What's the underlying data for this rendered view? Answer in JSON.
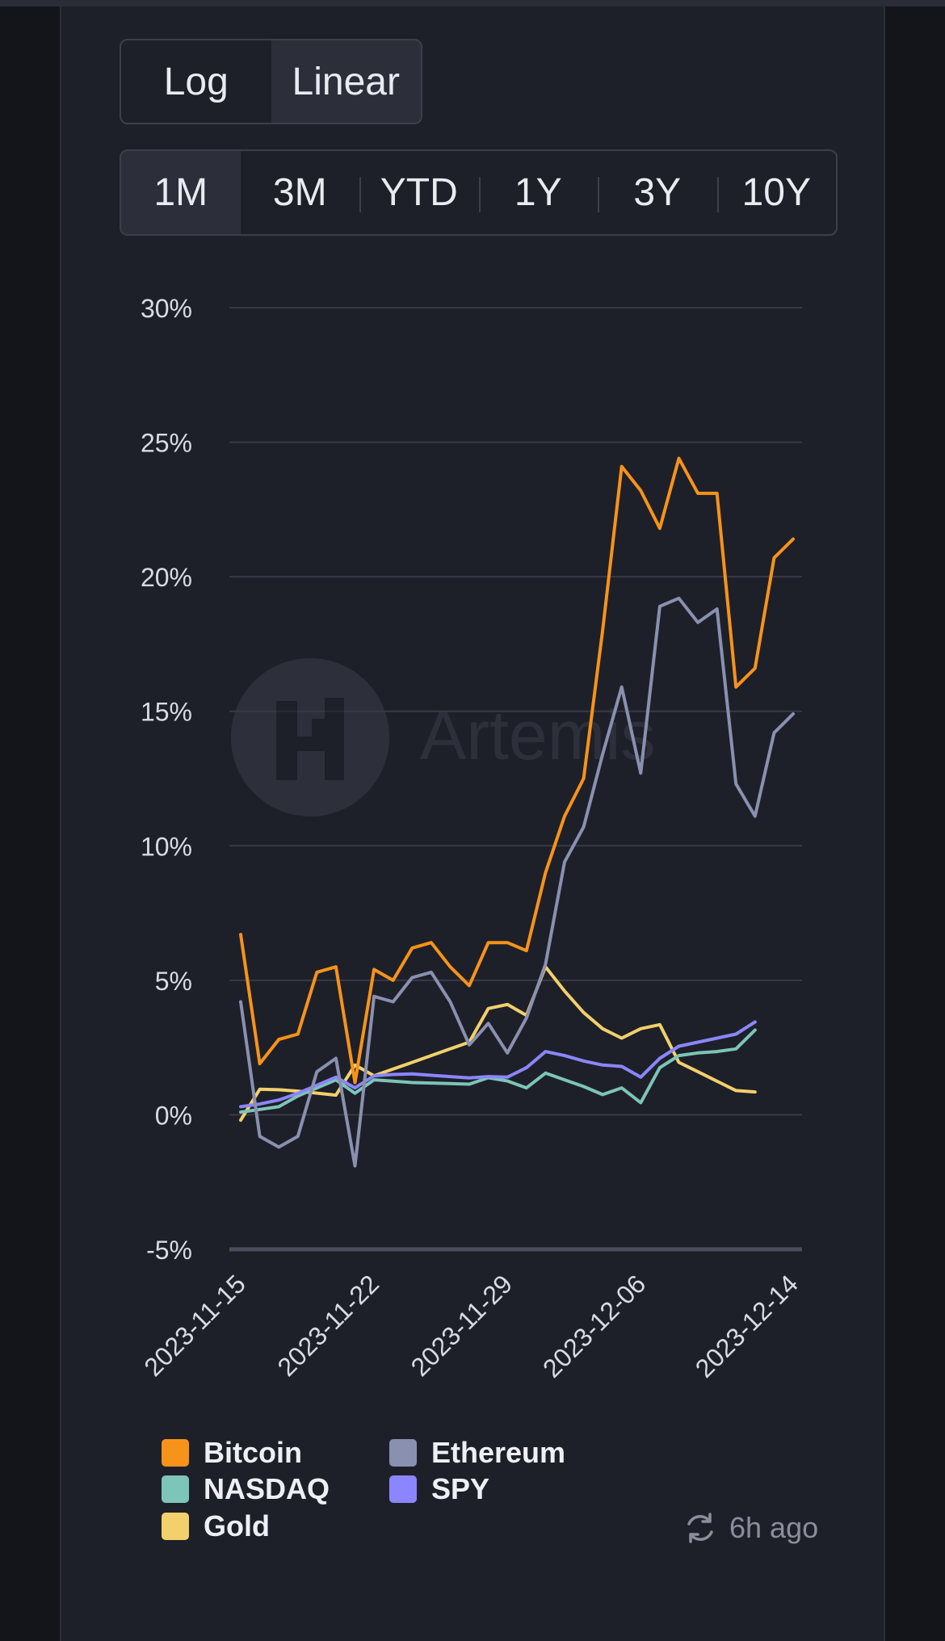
{
  "scale_toggle": {
    "options": [
      "Log",
      "Linear"
    ],
    "selected": "Linear"
  },
  "range_toggle": {
    "options": [
      "1M",
      "3M",
      "YTD",
      "1Y",
      "3Y",
      "10Y"
    ],
    "selected": "1M"
  },
  "watermark": "Artemis",
  "chart_data": {
    "type": "line",
    "title": "",
    "xlabel": "",
    "ylabel": "",
    "ylim": [
      -5,
      30
    ],
    "yticks": [
      -5,
      0,
      5,
      10,
      15,
      20,
      25,
      30
    ],
    "ytick_labels": [
      "-5%",
      "0%",
      "5%",
      "10%",
      "15%",
      "20%",
      "25%",
      "30%"
    ],
    "x_start": "2023-11-15",
    "x_end": "2023-12-14",
    "xticks": [
      "2023-11-15",
      "2023-11-22",
      "2023-11-29",
      "2023-12-06",
      "2023-12-14"
    ],
    "xtick_days": [
      0,
      7,
      14,
      21,
      29
    ],
    "grid": true,
    "legend_position": "bottom",
    "series": [
      {
        "name": "Bitcoin",
        "color": "#f7931a",
        "days": [
          0,
          1,
          2,
          3,
          4,
          5,
          6,
          7,
          8,
          9,
          10,
          11,
          12,
          13,
          14,
          15,
          16,
          17,
          18,
          19,
          20,
          21,
          22,
          23,
          24,
          25,
          26,
          27,
          28,
          29
        ],
        "values": [
          6.7,
          1.9,
          2.8,
          3.0,
          5.3,
          5.5,
          1.2,
          5.4,
          5.0,
          6.2,
          6.4,
          5.5,
          4.8,
          6.4,
          6.4,
          6.1,
          9.0,
          11.1,
          12.5,
          18.0,
          24.1,
          23.2,
          21.8,
          24.4,
          23.1,
          23.1,
          15.9,
          16.6,
          20.7,
          21.4
        ]
      },
      {
        "name": "Ethereum",
        "color": "#8a90b0",
        "days": [
          0,
          1,
          2,
          3,
          4,
          5,
          6,
          7,
          8,
          9,
          10,
          11,
          12,
          13,
          14,
          15,
          16,
          17,
          18,
          19,
          20,
          21,
          22,
          23,
          24,
          25,
          26,
          27,
          28,
          29
        ],
        "values": [
          4.2,
          -0.8,
          -1.2,
          -0.8,
          1.6,
          2.1,
          -1.9,
          4.4,
          4.2,
          5.1,
          5.3,
          4.2,
          2.6,
          3.4,
          2.3,
          3.6,
          5.6,
          9.4,
          10.7,
          13.4,
          15.9,
          12.7,
          18.9,
          19.2,
          18.3,
          18.8,
          12.3,
          11.1,
          14.2,
          14.9
        ]
      },
      {
        "name": "NASDAQ",
        "color": "#7cc5b8",
        "days": [
          0,
          1,
          2,
          3,
          5,
          6,
          7,
          8,
          9,
          10,
          11,
          12,
          13,
          14,
          15,
          16,
          17,
          18,
          19,
          20,
          21,
          22,
          23,
          24,
          25,
          26,
          27,
          28
        ],
        "values": [
          0.1,
          0.2,
          0.3,
          0.7,
          1.3,
          0.8,
          1.3,
          1.25,
          1.2,
          1.18,
          1.16,
          1.14,
          1.38,
          1.26,
          1.0,
          1.55,
          1.3,
          1.05,
          0.75,
          1.0,
          0.45,
          1.75,
          2.2,
          2.3,
          2.35,
          2.45,
          3.15,
          null
        ]
      },
      {
        "name": "SPY",
        "color": "#8b86ff",
        "days": [
          0,
          1,
          2,
          3,
          5,
          6,
          7,
          8,
          9,
          10,
          11,
          12,
          13,
          14,
          15,
          16,
          17,
          18,
          19,
          20,
          21,
          22,
          23,
          24,
          25,
          26,
          27,
          28
        ],
        "values": [
          0.3,
          0.4,
          0.55,
          0.8,
          1.4,
          1.0,
          1.45,
          1.5,
          1.52,
          1.47,
          1.42,
          1.37,
          1.42,
          1.4,
          1.75,
          2.35,
          2.2,
          2.0,
          1.85,
          1.8,
          1.4,
          2.1,
          2.55,
          2.7,
          2.85,
          3.0,
          3.45,
          null
        ]
      },
      {
        "name": "Gold",
        "color": "#f2d06b",
        "days": [
          0,
          1,
          2,
          3,
          5,
          6,
          7,
          8,
          9,
          10,
          11,
          12,
          13,
          14,
          15,
          16,
          17,
          18,
          19,
          20,
          21,
          22,
          23,
          24,
          25,
          26,
          27,
          28
        ],
        "values": [
          -0.2,
          0.95,
          0.93,
          0.88,
          0.73,
          1.85,
          1.45,
          1.7,
          1.95,
          2.2,
          2.45,
          2.7,
          3.95,
          4.1,
          3.7,
          5.5,
          4.6,
          3.8,
          3.2,
          2.85,
          3.2,
          3.35,
          1.95,
          1.6,
          1.25,
          0.9,
          0.85,
          null
        ]
      }
    ]
  },
  "legend": {
    "items": [
      {
        "name": "Bitcoin",
        "color": "#f7931a"
      },
      {
        "name": "Ethereum",
        "color": "#8a90b0"
      },
      {
        "name": "NASDAQ",
        "color": "#7cc5b8"
      },
      {
        "name": "SPY",
        "color": "#8b86ff"
      },
      {
        "name": "Gold",
        "color": "#f2d06b"
      }
    ]
  },
  "status": {
    "updated": "6h ago"
  }
}
